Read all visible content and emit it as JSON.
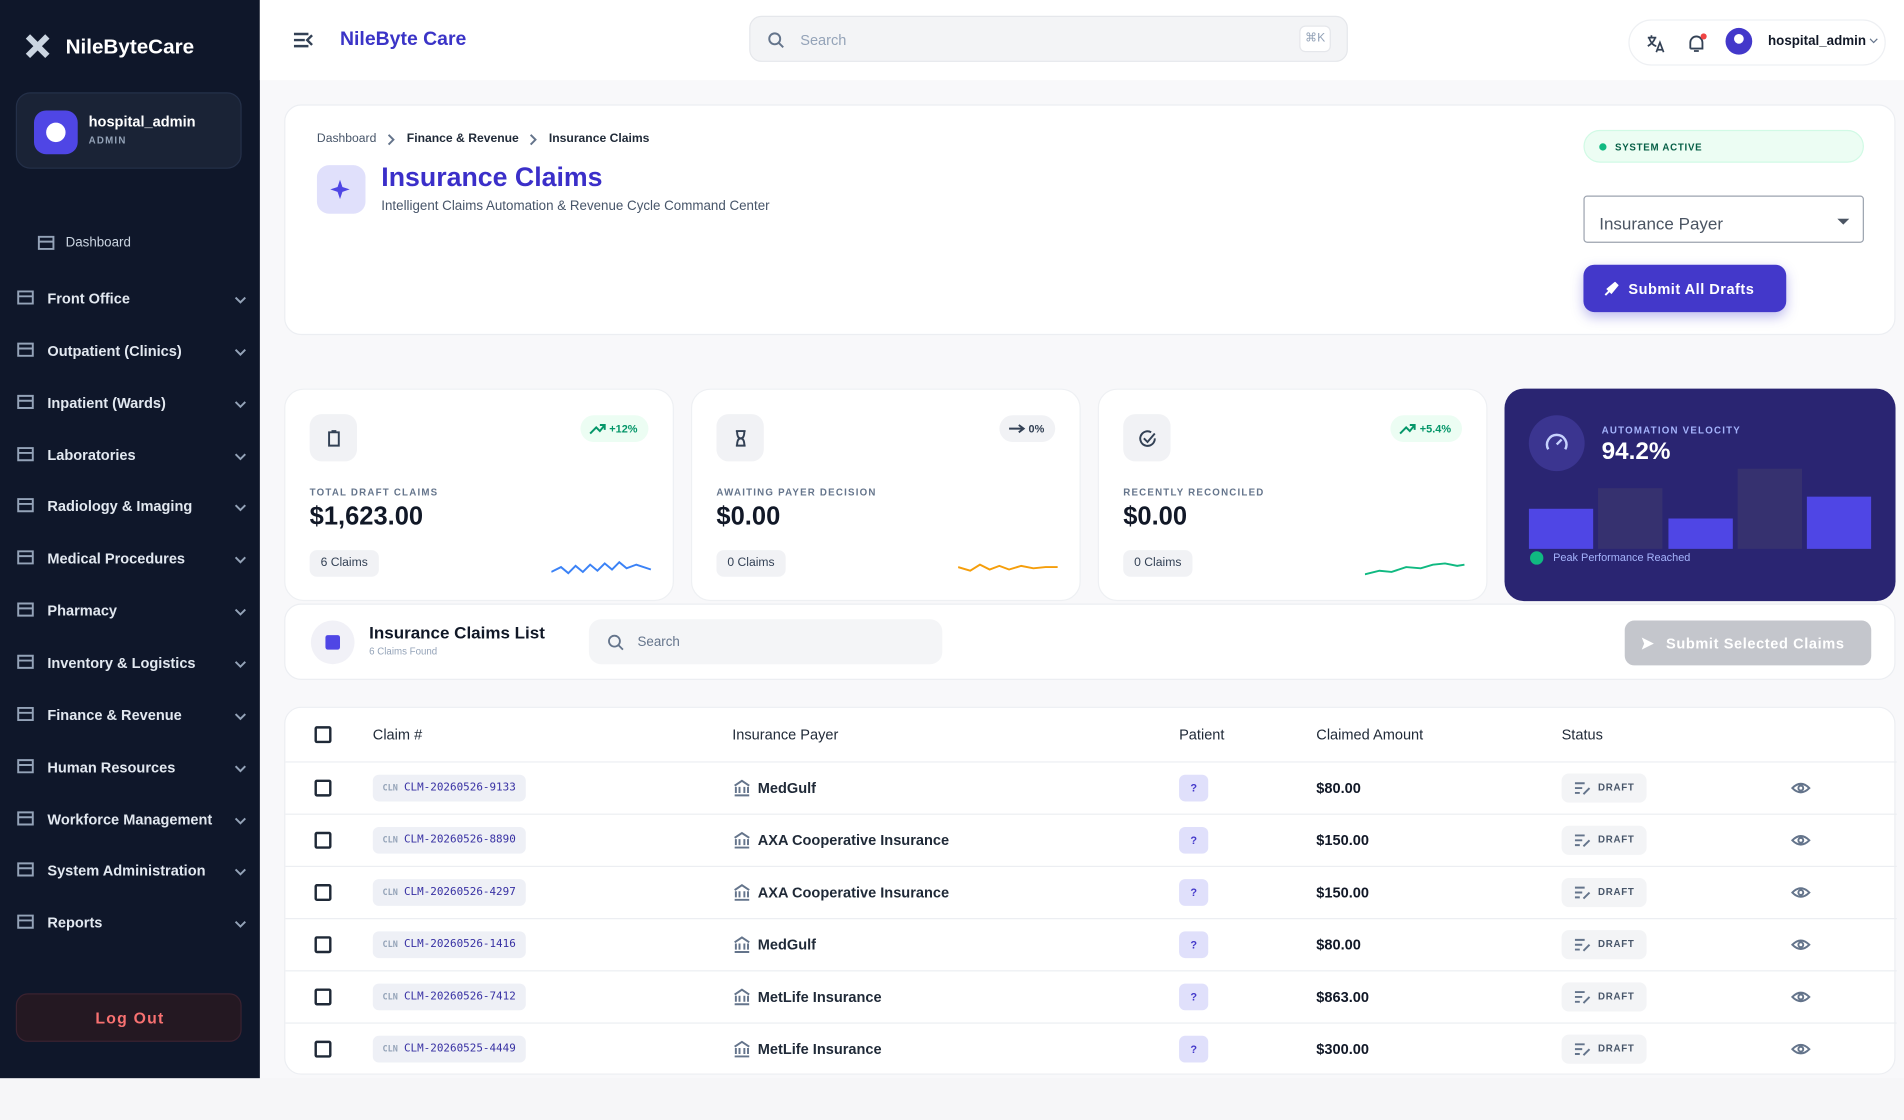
{
  "sidebar": {
    "brand": "NileByteCare",
    "user": {
      "name": "hospital_admin",
      "role": "ADMIN"
    },
    "nav": [
      "Dashboard",
      "Front Office",
      "Outpatient (Clinics)",
      "Inpatient (Wards)",
      "Laboratories",
      "Radiology & Imaging",
      "Medical Procedures",
      "Pharmacy",
      "Inventory & Logistics",
      "Finance & Revenue",
      "Human Resources",
      "Workforce Management",
      "System Administration",
      "Reports"
    ],
    "logout": "Log Out"
  },
  "topbar": {
    "title": "NileByte Care",
    "search": "Search",
    "shortcut": "⌘K",
    "user": "hospital_admin"
  },
  "header": {
    "breadcrumb": [
      "Dashboard",
      "Finance & Revenue",
      "Insurance Claims"
    ],
    "title": "Insurance Claims",
    "subtitle": "Intelligent Claims Automation & Revenue Cycle Command Center",
    "status": "SYSTEM ACTIVE",
    "payer_select": "Insurance Payer",
    "submit": "Submit All Drafts"
  },
  "stats": [
    {
      "label": "TOTAL DRAFT CLAIMS",
      "value": "$1,623.00",
      "count": "6 Claims",
      "trend": "+12%"
    },
    {
      "label": "AWAITING PAYER DECISION",
      "value": "$0.00",
      "count": "0 Claims",
      "trend": "0%"
    },
    {
      "label": "RECENTLY RECONCILED",
      "value": "$0.00",
      "count": "0 Claims",
      "trend": "+5.4%"
    }
  ],
  "velocity": {
    "label": "AUTOMATION VELOCITY",
    "value": "94.2%",
    "note": "Peak Performance Reached"
  },
  "list": {
    "title": "Insurance Claims List",
    "subtitle": "6 Claims Found",
    "search": "Search",
    "submit": "Submit Selected Claims",
    "columns": [
      "Claim #",
      "Insurance Payer",
      "Patient",
      "Claimed Amount",
      "Status"
    ],
    "rows": [
      [
        "CLN",
        "CLM-20260526-9133",
        "MedGulf",
        "?",
        "$80.00",
        "DRAFT"
      ],
      [
        "CLN",
        "CLM-20260526-8890",
        "AXA Cooperative Insurance",
        "?",
        "$150.00",
        "DRAFT"
      ],
      [
        "CLN",
        "CLM-20260526-4297",
        "AXA Cooperative Insurance",
        "?",
        "$150.00",
        "DRAFT"
      ],
      [
        "CLN",
        "CLM-20260526-1416",
        "MedGulf",
        "?",
        "$80.00",
        "DRAFT"
      ],
      [
        "CLN",
        "CLM-20260526-7412",
        "MetLife Insurance",
        "?",
        "$863.00",
        "DRAFT"
      ],
      [
        "CLN",
        "CLM-20260525-4449",
        "MetLife Insurance",
        "?",
        "$300.00",
        "DRAFT"
      ]
    ]
  }
}
